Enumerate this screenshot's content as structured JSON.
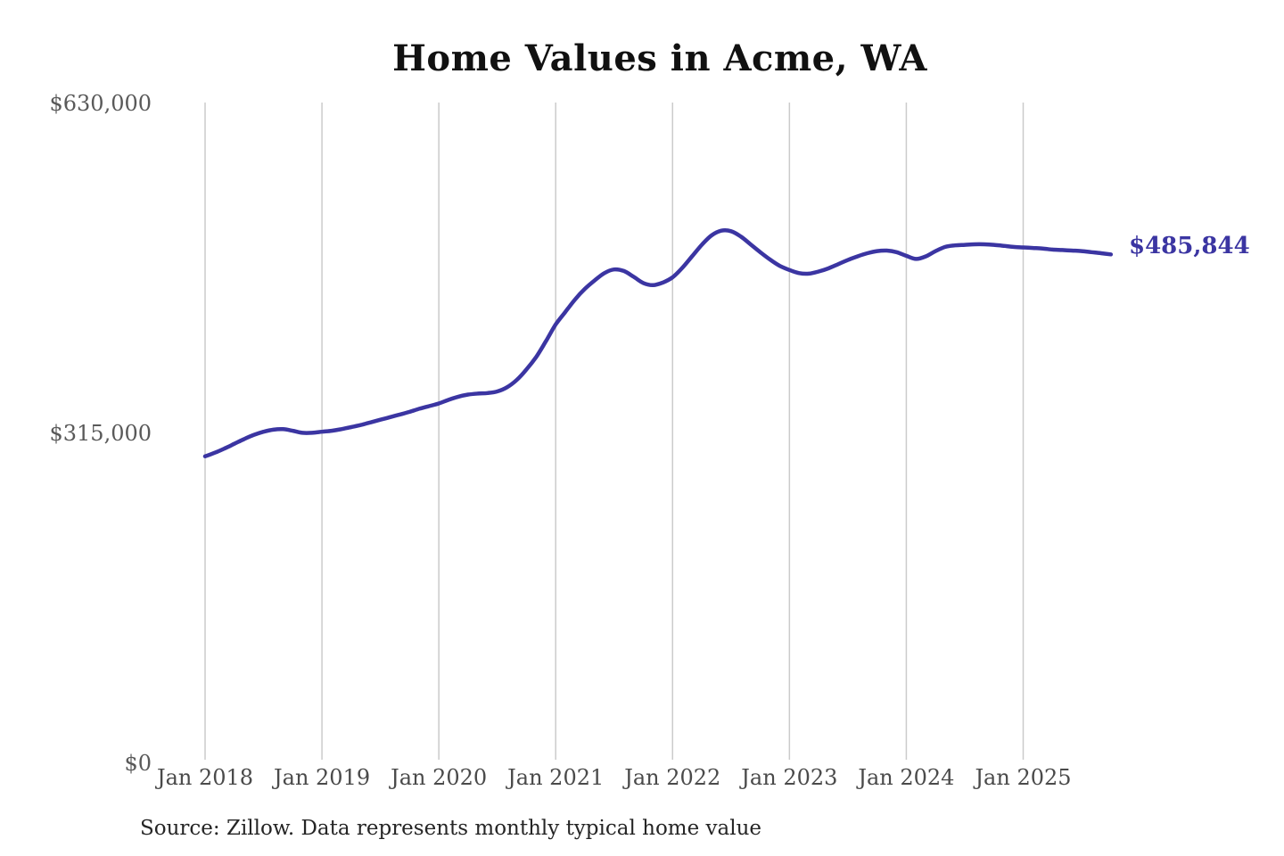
{
  "title": "Home Values in Acme, WA",
  "source_note": "Source: Zillow. Data represents monthly typical home value",
  "colors": {
    "line": "#3b35a2",
    "grid": "#cbcbcb",
    "y_axis_text": "#595959",
    "x_axis_text": "#4a4a4a",
    "title_text": "#111111",
    "source_text": "#252525",
    "background": "#ffffff"
  },
  "chart_data": {
    "type": "line",
    "title": "Home Values in Acme, WA",
    "xlabel": "",
    "ylabel": "",
    "frequency": "monthly",
    "x_start": "Jan 2018",
    "x_end": "Oct 2025",
    "x_tick_labels": [
      "Jan 2018",
      "Jan 2019",
      "Jan 2020",
      "Jan 2021",
      "Jan 2022",
      "Jan 2023",
      "Jan 2024",
      "Jan 2025"
    ],
    "y_ticks": [
      {
        "value": 0,
        "label": "$0"
      },
      {
        "value": 315000,
        "label": "$315,000"
      },
      {
        "value": 630000,
        "label": "$630,000"
      }
    ],
    "ylim": [
      0,
      630000
    ],
    "grid": "vertical-only",
    "legend": "none",
    "series": [
      {
        "name": "Typical home value",
        "values": [
          293000,
          296500,
          300500,
          305000,
          309500,
          313500,
          316500,
          318500,
          319000,
          317500,
          315500,
          315500,
          316500,
          317500,
          319000,
          321000,
          323000,
          325500,
          328000,
          330500,
          333000,
          335500,
          338500,
          341000,
          343500,
          347000,
          350000,
          352000,
          353000,
          353500,
          355000,
          359000,
          366000,
          376000,
          388000,
          403000,
          419000,
          431000,
          443000,
          453000,
          461000,
          468000,
          471500,
          470000,
          464500,
          458500,
          456500,
          459000,
          464000,
          473000,
          484000,
          495000,
          504000,
          508500,
          508000,
          503000,
          495500,
          488000,
          481000,
          475000,
          471000,
          468000,
          467500,
          469500,
          472500,
          476500,
          480500,
          484000,
          487000,
          489000,
          489500,
          488000,
          484500,
          481500,
          484000,
          489000,
          493000,
          494500,
          495000,
          495500,
          495500,
          495000,
          494000,
          493000,
          492500,
          492000,
          491500,
          490500,
          490000,
          489500,
          489000,
          488000,
          487000,
          485844
        ]
      }
    ],
    "final_value": 485844,
    "final_value_label": "$485,844"
  }
}
